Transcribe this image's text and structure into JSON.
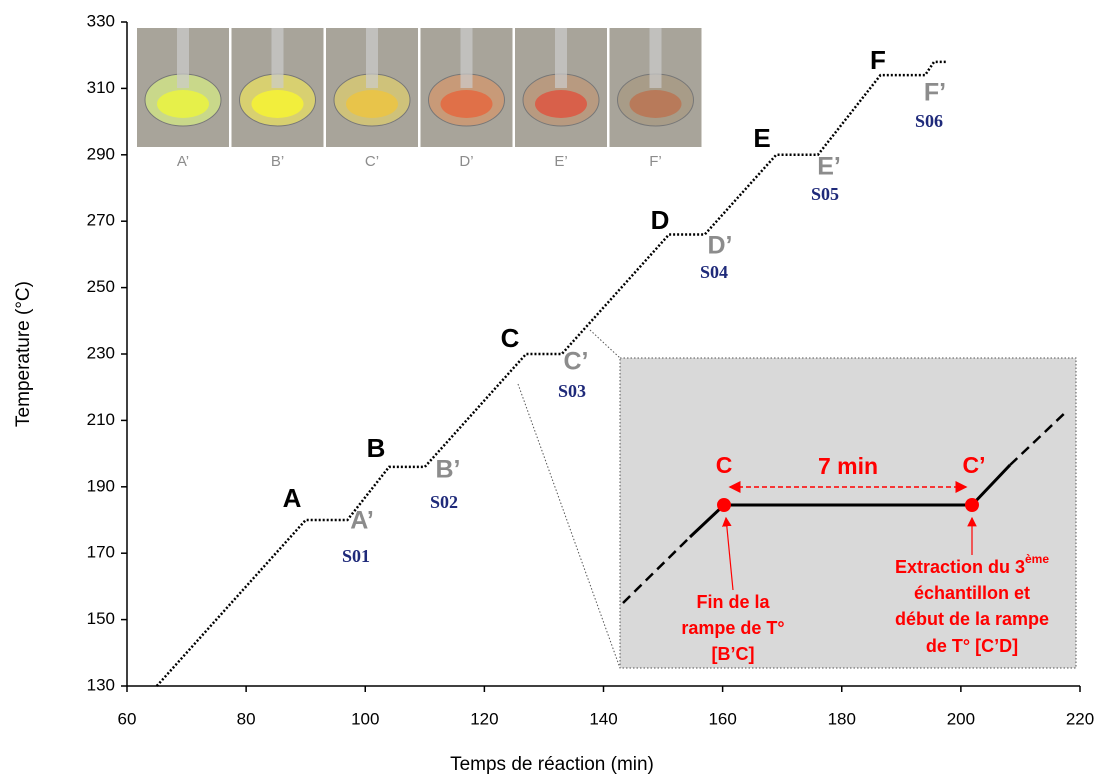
{
  "chart_data": {
    "type": "line",
    "xlabel": "Temps de réaction (min)",
    "ylabel": "Temperature (°C)",
    "x": [
      65,
      90,
      97,
      104,
      110,
      127,
      133,
      151,
      157,
      169,
      176,
      186.5,
      194,
      195.5,
      197.5
    ],
    "values": [
      130,
      180,
      180,
      196,
      196,
      230,
      230,
      266,
      266,
      290,
      290,
      314,
      314,
      318,
      318
    ],
    "color": "#000000",
    "xlim": [
      60,
      220
    ],
    "xticks": [
      60,
      80,
      100,
      120,
      140,
      160,
      180,
      200,
      220
    ],
    "ylim": [
      130,
      330
    ],
    "yticks": [
      130,
      150,
      170,
      190,
      210,
      230,
      250,
      270,
      290,
      310,
      330
    ],
    "markers": [
      {
        "label": "A",
        "sample_label": "A’",
        "sample": "S01"
      },
      {
        "label": "B",
        "sample_label": "B’",
        "sample": "S02"
      },
      {
        "label": "C",
        "sample_label": "C’",
        "sample": "S03"
      },
      {
        "label": "D",
        "sample_label": "D’",
        "sample": "S04"
      },
      {
        "label": "E",
        "sample_label": "E’",
        "sample": "S05"
      },
      {
        "label": "F",
        "sample_label": "F’",
        "sample": "S06"
      }
    ],
    "photos": {
      "captions": [
        "A’",
        "B’",
        "C’",
        "D’",
        "E’",
        "F’"
      ]
    },
    "inset": {
      "start_label": "C",
      "end_label": "C’",
      "duration": "7 min",
      "left_note": [
        "Fin de la",
        "rampe de T°",
        "[B’C]"
      ],
      "right_note": {
        "first": "Extraction du 3",
        "sup": "ème",
        "rest": [
          "échantillon et",
          "début de la rampe",
          "de T° [C’D]"
        ]
      }
    }
  }
}
